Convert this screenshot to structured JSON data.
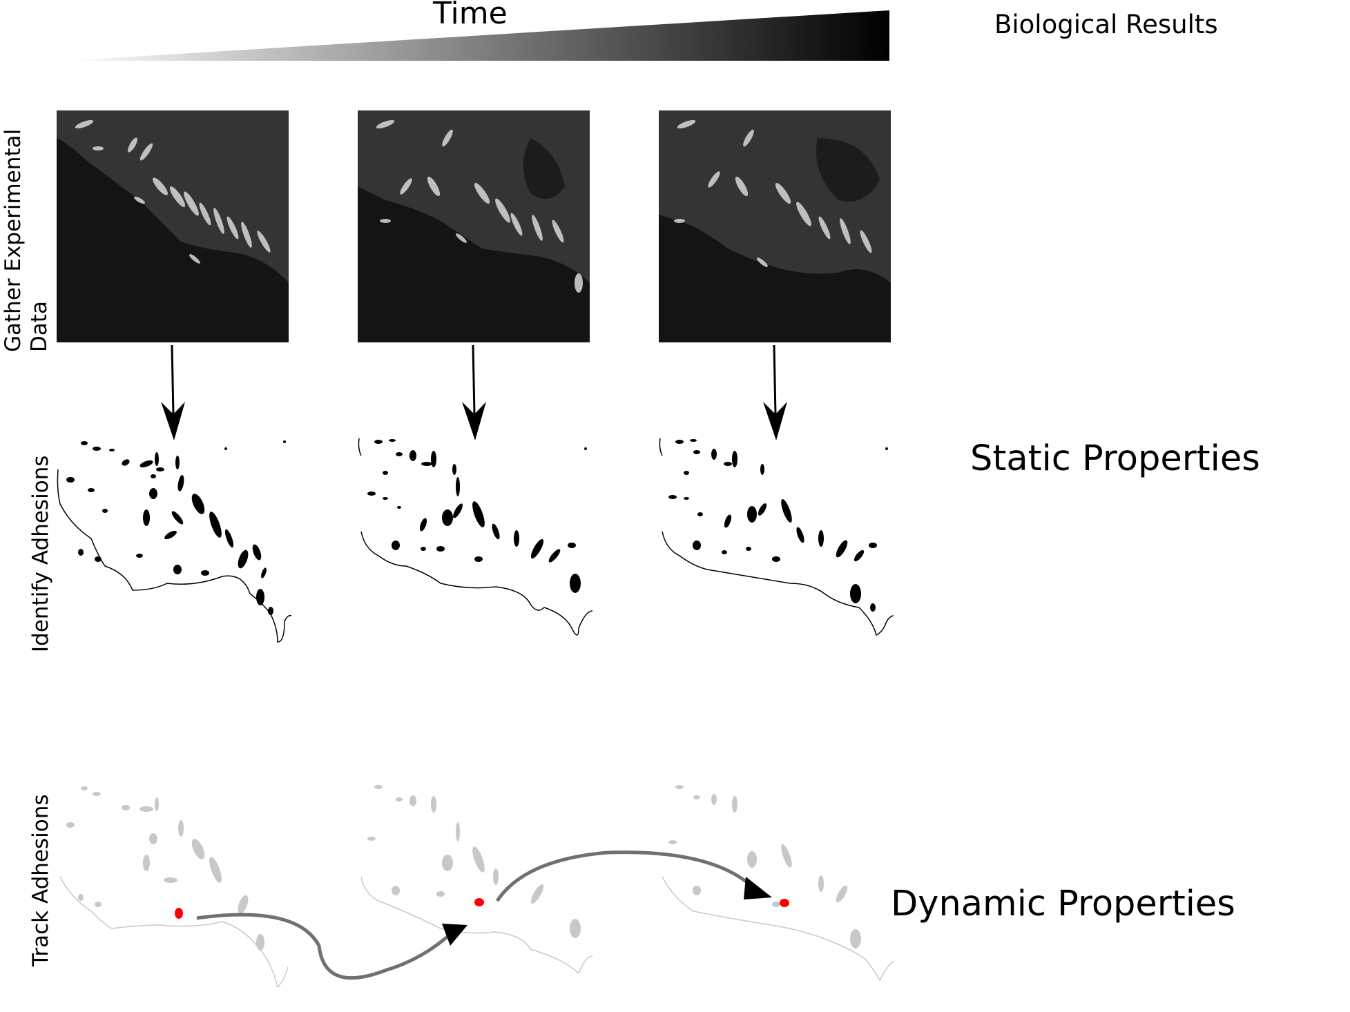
{
  "header": {
    "time_label": "Time",
    "results_label": "Biological Results"
  },
  "rows": [
    {
      "label_line1": "Gather Experimental",
      "label_line2": "Data"
    },
    {
      "label_line1": "Identify Adhesions",
      "label_line2": ""
    },
    {
      "label_line1": "Track Adhesions",
      "label_line2": ""
    }
  ],
  "results": {
    "static": "Static Properties",
    "dynamic": "Dynamic Properties"
  },
  "colors": {
    "tracked_adhesion": "#ff0000",
    "faded_adhesion": "#c8c8c8",
    "track_arrow": "#707070",
    "gradient_start": "#ffffff",
    "gradient_end": "#000000"
  },
  "frames": 3
}
